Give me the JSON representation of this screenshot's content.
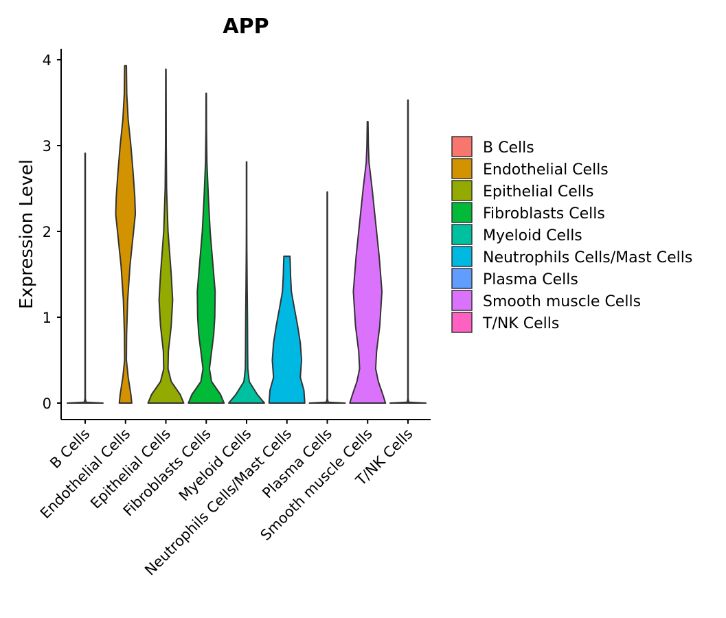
{
  "chart_data": {
    "type": "violin",
    "title": "APP",
    "xlabel": "",
    "ylabel": "Expression Level",
    "ylim": [
      -0.2,
      4.13
    ],
    "yticks": [
      0,
      1,
      2,
      3,
      4
    ],
    "categories": [
      "B Cells",
      "Endothelial Cells",
      "Epithelial Cells",
      "Fibroblasts Cells",
      "Myeloid Cells",
      "Neutrophils Cells/Mast Cells",
      "Plasma Cells",
      "Smooth muscle Cells",
      "T/NK Cells"
    ],
    "colors": [
      "#F8766D",
      "#D39200",
      "#93AA00",
      "#00BA38",
      "#00C19F",
      "#00B9E3",
      "#619CFF",
      "#DB72FB",
      "#FF61C3"
    ],
    "legend_position": "right",
    "series": [
      {
        "name": "B Cells",
        "max": 2.91,
        "density": [
          [
            0,
            1.0
          ],
          [
            0.01,
            0.05
          ],
          [
            0.05,
            0.01
          ],
          [
            2.91,
            0.01
          ]
        ]
      },
      {
        "name": "Endothelial Cells",
        "max": 3.93,
        "density": [
          [
            0,
            0.35
          ],
          [
            0.1,
            0.3
          ],
          [
            0.3,
            0.15
          ],
          [
            0.5,
            0.05
          ],
          [
            0.8,
            0.06
          ],
          [
            1.2,
            0.12
          ],
          [
            1.6,
            0.25
          ],
          [
            2.0,
            0.45
          ],
          [
            2.2,
            0.55
          ],
          [
            2.4,
            0.52
          ],
          [
            2.7,
            0.42
          ],
          [
            3.0,
            0.3
          ],
          [
            3.3,
            0.15
          ],
          [
            3.6,
            0.07
          ],
          [
            3.93,
            0.05
          ]
        ]
      },
      {
        "name": "Epithelial Cells",
        "max": 3.89,
        "density": [
          [
            0,
            1.0
          ],
          [
            0.1,
            0.8
          ],
          [
            0.25,
            0.3
          ],
          [
            0.4,
            0.12
          ],
          [
            0.6,
            0.14
          ],
          [
            0.9,
            0.3
          ],
          [
            1.2,
            0.38
          ],
          [
            1.5,
            0.3
          ],
          [
            2.0,
            0.12
          ],
          [
            2.5,
            0.04
          ],
          [
            3.0,
            0.02
          ],
          [
            3.5,
            0.015
          ],
          [
            3.89,
            0.01
          ]
        ]
      },
      {
        "name": "Fibroblasts Cells",
        "max": 3.61,
        "density": [
          [
            0,
            1.0
          ],
          [
            0.1,
            0.8
          ],
          [
            0.25,
            0.3
          ],
          [
            0.4,
            0.18
          ],
          [
            0.6,
            0.3
          ],
          [
            0.8,
            0.42
          ],
          [
            1.0,
            0.48
          ],
          [
            1.3,
            0.5
          ],
          [
            1.6,
            0.38
          ],
          [
            2.0,
            0.22
          ],
          [
            2.4,
            0.12
          ],
          [
            2.8,
            0.04
          ],
          [
            3.2,
            0.015
          ],
          [
            3.61,
            0.01
          ]
        ]
      },
      {
        "name": "Myeloid Cells",
        "max": 2.81,
        "density": [
          [
            0,
            1.0
          ],
          [
            0.1,
            0.6
          ],
          [
            0.25,
            0.15
          ],
          [
            0.4,
            0.07
          ],
          [
            0.6,
            0.06
          ],
          [
            1.0,
            0.05
          ],
          [
            1.4,
            0.03
          ],
          [
            1.8,
            0.015
          ],
          [
            2.2,
            0.01
          ],
          [
            2.81,
            0.01
          ]
        ]
      },
      {
        "name": "Neutrophils Cells/Mast Cells",
        "max": 1.71,
        "density": [
          [
            0,
            1.0
          ],
          [
            0.15,
            0.95
          ],
          [
            0.3,
            0.75
          ],
          [
            0.5,
            0.82
          ],
          [
            0.7,
            0.75
          ],
          [
            0.9,
            0.6
          ],
          [
            1.1,
            0.42
          ],
          [
            1.3,
            0.25
          ],
          [
            1.5,
            0.2
          ],
          [
            1.6,
            0.19
          ],
          [
            1.71,
            0.17
          ]
        ]
      },
      {
        "name": "Plasma Cells",
        "max": 2.46,
        "density": [
          [
            0,
            1.0
          ],
          [
            0.01,
            0.05
          ],
          [
            0.05,
            0.01
          ],
          [
            2.46,
            0.01
          ]
        ]
      },
      {
        "name": "Smooth muscle Cells",
        "max": 3.28,
        "density": [
          [
            0,
            1.0
          ],
          [
            0.1,
            0.85
          ],
          [
            0.25,
            0.6
          ],
          [
            0.4,
            0.45
          ],
          [
            0.6,
            0.5
          ],
          [
            0.9,
            0.68
          ],
          [
            1.3,
            0.8
          ],
          [
            1.7,
            0.65
          ],
          [
            2.1,
            0.45
          ],
          [
            2.5,
            0.25
          ],
          [
            2.8,
            0.08
          ],
          [
            3.0,
            0.04
          ],
          [
            3.28,
            0.02
          ]
        ]
      },
      {
        "name": "T/NK Cells",
        "max": 3.53,
        "density": [
          [
            0,
            1.0
          ],
          [
            0.01,
            0.05
          ],
          [
            0.05,
            0.01
          ],
          [
            3.53,
            0.01
          ]
        ]
      }
    ]
  }
}
